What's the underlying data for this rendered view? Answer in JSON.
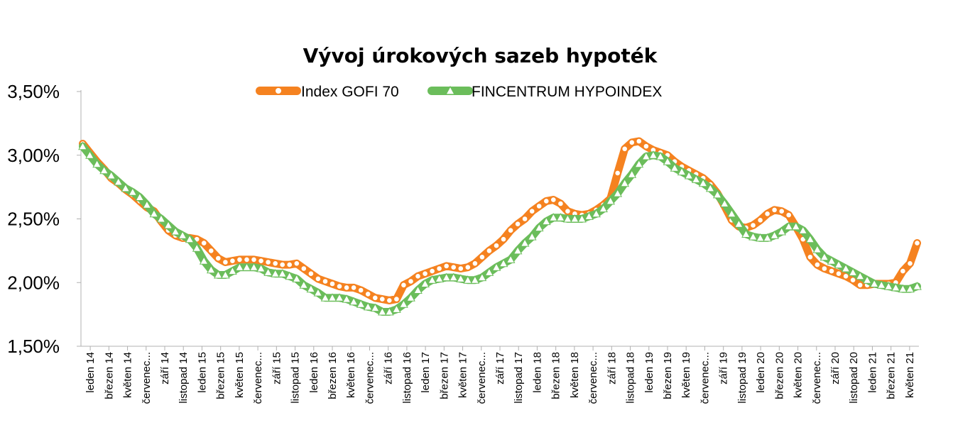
{
  "chart_data": {
    "type": "line",
    "title": "Vývoj úrokových sazeb hypoték",
    "xlabel": "",
    "ylabel": "",
    "ylim": [
      1.5,
      3.5
    ],
    "yticks": [
      "1,50%",
      "2,00%",
      "2,50%",
      "3,00%",
      "3,50%"
    ],
    "legend_position": "top",
    "x_labels": [
      "leden 14",
      "březen 14",
      "květen 14",
      "červenec...",
      "září 14",
      "listopad 14",
      "leden 15",
      "březen 15",
      "květen 15",
      "červenec...",
      "září 15",
      "listopad 15",
      "leden 16",
      "březen 16",
      "květen 16",
      "červenec...",
      "září 16",
      "listopad 16",
      "leden 17",
      "březen 17",
      "květen 17",
      "červenec...",
      "září 17",
      "listopad 17",
      "leden 18",
      "březen 18",
      "květen 18",
      "červenec...",
      "září 18",
      "listopad 18",
      "leden 19",
      "březen 19",
      "květen 19",
      "červenec...",
      "září 19",
      "listopad 19",
      "leden 20",
      "březen 20",
      "květen 20",
      "červenec...",
      "září 20",
      "listopad 20",
      "leden 21",
      "březen 21",
      "květen 21"
    ],
    "series": [
      {
        "name": "Index GOFI 70",
        "color": "#f58220",
        "marker": "circle",
        "values": [
          3.09,
          3.02,
          2.95,
          2.89,
          2.82,
          2.78,
          2.73,
          2.69,
          2.64,
          2.59,
          2.56,
          2.48,
          2.41,
          2.37,
          2.35,
          2.35,
          2.34,
          2.31,
          2.25,
          2.19,
          2.16,
          2.17,
          2.18,
          2.18,
          2.18,
          2.17,
          2.16,
          2.15,
          2.14,
          2.14,
          2.15,
          2.11,
          2.07,
          2.03,
          2.01,
          1.99,
          1.97,
          1.96,
          1.96,
          1.94,
          1.91,
          1.88,
          1.87,
          1.86,
          1.87,
          1.98,
          2.01,
          2.05,
          2.07,
          2.09,
          2.11,
          2.13,
          2.12,
          2.11,
          2.12,
          2.15,
          2.2,
          2.25,
          2.29,
          2.34,
          2.41,
          2.46,
          2.5,
          2.56,
          2.6,
          2.64,
          2.65,
          2.62,
          2.56,
          2.54,
          2.53,
          2.54,
          2.57,
          2.61,
          2.66,
          2.86,
          3.05,
          3.1,
          3.11,
          3.07,
          3.04,
          3.02,
          3.0,
          2.95,
          2.91,
          2.88,
          2.85,
          2.82,
          2.77,
          2.7,
          2.6,
          2.49,
          2.44,
          2.43,
          2.45,
          2.49,
          2.54,
          2.57,
          2.56,
          2.53,
          2.44,
          2.34,
          2.2,
          2.14,
          2.11,
          2.09,
          2.07,
          2.05,
          2.02,
          1.98,
          1.98,
          1.99,
          1.99,
          1.99,
          2.0,
          2.09,
          2.15,
          2.31
        ]
      },
      {
        "name": "FINCENTRUM HYPOINDEX",
        "color": "#6bbd5b",
        "marker": "triangle",
        "values": [
          3.07,
          3.0,
          2.93,
          2.88,
          2.84,
          2.79,
          2.74,
          2.71,
          2.67,
          2.61,
          2.54,
          2.5,
          2.45,
          2.4,
          2.37,
          2.34,
          2.27,
          2.17,
          2.1,
          2.06,
          2.06,
          2.09,
          2.12,
          2.12,
          2.12,
          2.11,
          2.08,
          2.07,
          2.07,
          2.05,
          2.03,
          1.98,
          1.95,
          1.92,
          1.88,
          1.88,
          1.88,
          1.87,
          1.85,
          1.83,
          1.81,
          1.8,
          1.77,
          1.77,
          1.79,
          1.83,
          1.88,
          1.94,
          1.99,
          2.02,
          2.03,
          2.04,
          2.04,
          2.03,
          2.02,
          2.02,
          2.04,
          2.08,
          2.12,
          2.15,
          2.18,
          2.25,
          2.31,
          2.36,
          2.43,
          2.48,
          2.51,
          2.51,
          2.5,
          2.5,
          2.5,
          2.52,
          2.54,
          2.58,
          2.64,
          2.7,
          2.78,
          2.85,
          2.93,
          2.99,
          3.0,
          2.99,
          2.95,
          2.9,
          2.87,
          2.84,
          2.81,
          2.78,
          2.74,
          2.69,
          2.62,
          2.54,
          2.46,
          2.38,
          2.36,
          2.35,
          2.35,
          2.37,
          2.4,
          2.44,
          2.44,
          2.41,
          2.34,
          2.26,
          2.2,
          2.17,
          2.14,
          2.11,
          2.08,
          2.05,
          2.02,
          1.99,
          1.98,
          1.97,
          1.96,
          1.95,
          1.95,
          1.97
        ]
      }
    ]
  }
}
